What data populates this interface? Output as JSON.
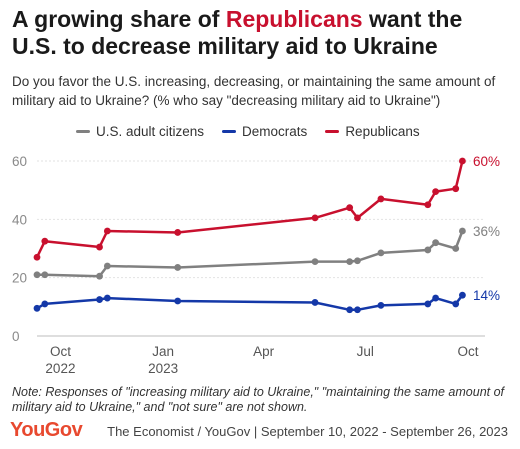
{
  "header": {
    "title_pre": "A growing share of ",
    "title_highlight": "Republicans",
    "title_post": " want the U.S. to decrease military aid to Ukraine",
    "subtitle": "Do you favor the U.S. increasing, decreasing, or maintaining the same amount of military aid to Ukraine? (% who say \"decreasing military aid to Ukraine\")"
  },
  "footer": {
    "note": "Note: Responses of \"increasing military aid to Ukraine,\" \"maintaining the same amount of military aid to Ukraine,\" and \"not sure\" are not shown.",
    "logo": "YouGov",
    "source": "The Economist / YouGov | September 10, 2022 - September 26, 2023"
  },
  "colors": {
    "adults": "#808080",
    "democrats": "#1438a8",
    "republicans": "#c8102e",
    "highlight": "#c8102e",
    "logo": "#e8492f"
  },
  "chart_data": {
    "type": "line",
    "xlim": [
      "2022-09-10",
      "2023-10-01"
    ],
    "ylim": [
      0,
      60
    ],
    "yticks": [
      0,
      20,
      40,
      60
    ],
    "grid": true,
    "legend_position": "top",
    "xticks": [
      {
        "date": "2022-10-01",
        "line1": "Oct",
        "line2": "2022"
      },
      {
        "date": "2023-01-01",
        "line1": "Jan",
        "line2": "2023"
      },
      {
        "date": "2023-04-01",
        "line1": "Apr",
        "line2": ""
      },
      {
        "date": "2023-07-01",
        "line1": "Jul",
        "line2": ""
      },
      {
        "date": "2023-10-01",
        "line1": "Oct",
        "line2": ""
      }
    ],
    "x": [
      "2022-09-10",
      "2022-09-17",
      "2022-11-05",
      "2022-11-12",
      "2023-01-14",
      "2023-05-17",
      "2023-06-17",
      "2023-06-24",
      "2023-07-15",
      "2023-08-26",
      "2023-09-02",
      "2023-09-20",
      "2023-09-26"
    ],
    "series": [
      {
        "name": "U.S. adult citizens",
        "key": "adults",
        "values": [
          21,
          21,
          20.5,
          24,
          23.5,
          25.5,
          25.5,
          25.8,
          28.5,
          29.5,
          32,
          30,
          36
        ],
        "end_label": "36%"
      },
      {
        "name": "Democrats",
        "key": "democrats",
        "values": [
          9.5,
          11,
          12.5,
          13,
          12,
          11.5,
          9,
          9,
          10.5,
          11,
          13,
          11,
          14
        ],
        "end_label": "14%"
      },
      {
        "name": "Republicans",
        "key": "republicans",
        "values": [
          27,
          32.5,
          30.5,
          36,
          35.5,
          40.5,
          44,
          40.5,
          47,
          45,
          49.5,
          50.5,
          60
        ],
        "end_label": "60%"
      }
    ]
  }
}
